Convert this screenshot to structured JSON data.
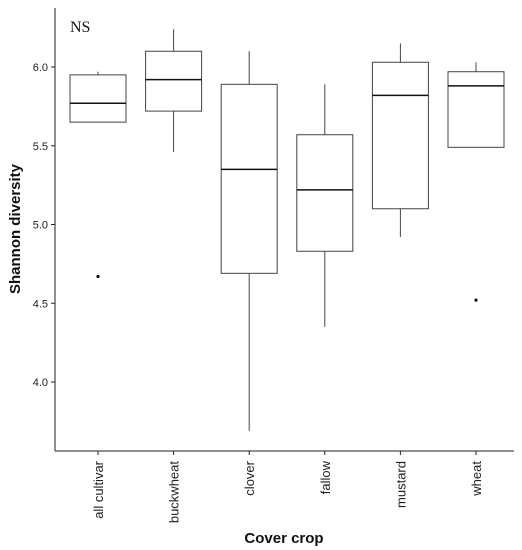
{
  "chart_data": {
    "type": "box",
    "annotation": "NS",
    "xlabel": "Cover crop",
    "ylabel": "Shannon diversity",
    "categories": [
      "all cultivar",
      "buckwheat",
      "clover",
      "fallow",
      "mustard",
      "wheat"
    ],
    "boxes": [
      {
        "category": "all cultivar",
        "whisker_low": 5.65,
        "q1": 5.65,
        "median": 5.77,
        "q3": 5.95,
        "whisker_high": 5.97,
        "outliers": [
          4.67
        ]
      },
      {
        "category": "buckwheat",
        "whisker_low": 5.46,
        "q1": 5.72,
        "median": 5.92,
        "q3": 6.1,
        "whisker_high": 6.24,
        "outliers": []
      },
      {
        "category": "clover",
        "whisker_low": 3.69,
        "q1": 4.69,
        "median": 5.35,
        "q3": 5.89,
        "whisker_high": 6.1,
        "outliers": []
      },
      {
        "category": "fallow",
        "whisker_low": 4.35,
        "q1": 4.83,
        "median": 5.22,
        "q3": 5.57,
        "whisker_high": 5.89,
        "outliers": []
      },
      {
        "category": "mustard",
        "whisker_low": 4.92,
        "q1": 5.1,
        "median": 5.82,
        "q3": 6.03,
        "whisker_high": 6.15,
        "outliers": []
      },
      {
        "category": "wheat",
        "whisker_low": 5.49,
        "q1": 5.49,
        "median": 5.88,
        "q3": 5.97,
        "whisker_high": 6.03,
        "outliers": [
          4.52
        ]
      }
    ],
    "yticks": [
      4.0,
      4.5,
      5.0,
      5.5,
      6.0
    ],
    "ytick_labels": [
      "4.0",
      "4.5",
      "5.0",
      "5.5",
      "6.0"
    ],
    "ylim": [
      3.55,
      6.4
    ],
    "grid": false,
    "legend": "none"
  }
}
